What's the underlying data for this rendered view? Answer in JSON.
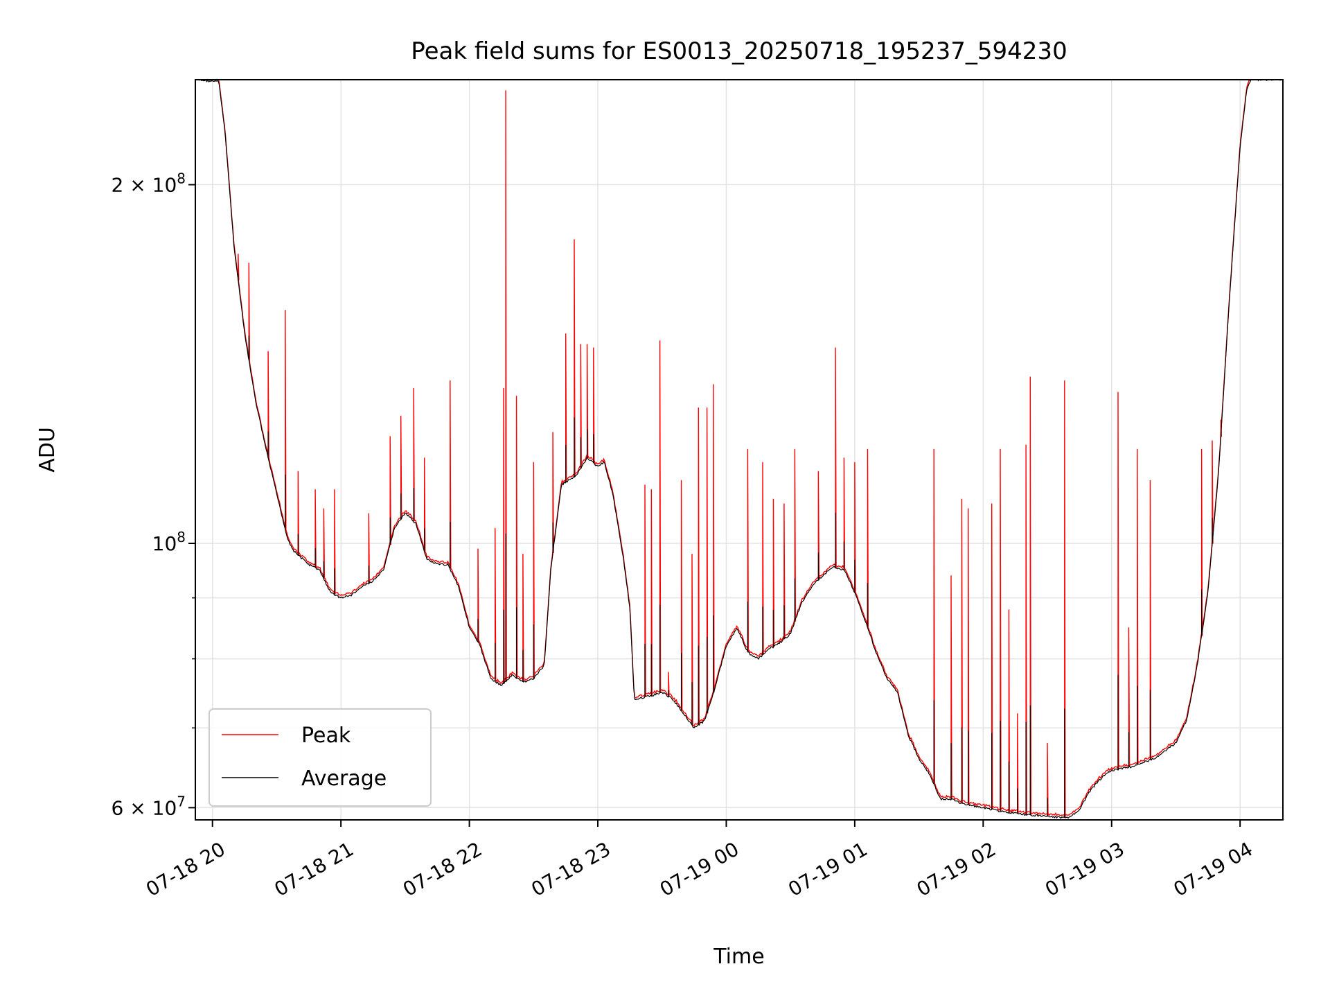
{
  "chart_data": {
    "type": "line",
    "title": "Peak field sums for ES0013_20250718_195237_594230",
    "xlabel": "Time",
    "ylabel": "ADU",
    "y_scale": "log",
    "ylim": [
      58600000,
      245000000
    ],
    "xlim": [
      "2025-07-18T19:52:00",
      "2025-07-19T04:20:00"
    ],
    "x_ticks": [
      {
        "t": "2025-07-18T20:00",
        "label": "07-18 20"
      },
      {
        "t": "2025-07-18T21:00",
        "label": "07-18 21"
      },
      {
        "t": "2025-07-18T22:00",
        "label": "07-18 22"
      },
      {
        "t": "2025-07-18T23:00",
        "label": "07-18 23"
      },
      {
        "t": "2025-07-19T00:00",
        "label": "07-19 00"
      },
      {
        "t": "2025-07-19T01:00",
        "label": "07-19 01"
      },
      {
        "t": "2025-07-19T02:00",
        "label": "07-19 02"
      },
      {
        "t": "2025-07-19T03:00",
        "label": "07-19 03"
      },
      {
        "t": "2025-07-19T04:00",
        "label": "07-19 04"
      }
    ],
    "y_ticks_major": [
      {
        "value": 60000000,
        "label": "6 × 10",
        "exp": "7"
      },
      {
        "value": 100000000,
        "label": "10",
        "exp": "8"
      },
      {
        "value": 200000000,
        "label": "2 × 10",
        "exp": "8"
      }
    ],
    "y_ticks_minor": [
      70000000,
      80000000,
      90000000
    ],
    "grid": true,
    "legend_position": "lower-left",
    "colors": {
      "peak": "#ff0000",
      "average": "#000000"
    },
    "average_series": {
      "name": "Average",
      "points": [
        [
          "2025-07-18T19:52",
          245000000
        ],
        [
          "2025-07-18T20:03",
          244000000
        ],
        [
          "2025-07-18T20:06",
          220000000
        ],
        [
          "2025-07-18T20:10",
          178000000
        ],
        [
          "2025-07-18T20:15",
          150000000
        ],
        [
          "2025-07-18T20:20",
          132000000
        ],
        [
          "2025-07-18T20:25",
          120000000
        ],
        [
          "2025-07-18T20:30",
          110000000
        ],
        [
          "2025-07-18T20:35",
          101000000
        ],
        [
          "2025-07-18T20:38",
          98500000
        ],
        [
          "2025-07-18T20:45",
          96000000
        ],
        [
          "2025-07-18T20:50",
          95000000
        ],
        [
          "2025-07-18T20:55",
          91000000
        ],
        [
          "2025-07-18T21:00",
          90000000
        ],
        [
          "2025-07-18T21:05",
          90500000
        ],
        [
          "2025-07-18T21:10",
          92000000
        ],
        [
          "2025-07-18T21:15",
          93000000
        ],
        [
          "2025-07-18T21:20",
          95000000
        ],
        [
          "2025-07-18T21:25",
          103000000
        ],
        [
          "2025-07-18T21:30",
          106000000
        ],
        [
          "2025-07-18T21:35",
          104000000
        ],
        [
          "2025-07-18T21:40",
          97000000
        ],
        [
          "2025-07-18T21:45",
          96000000
        ],
        [
          "2025-07-18T21:50",
          96000000
        ],
        [
          "2025-07-18T21:55",
          92000000
        ],
        [
          "2025-07-18T22:00",
          85000000
        ],
        [
          "2025-07-18T22:05",
          82000000
        ],
        [
          "2025-07-18T22:10",
          77000000
        ],
        [
          "2025-07-18T22:15",
          76000000
        ],
        [
          "2025-07-18T22:20",
          77500000
        ],
        [
          "2025-07-18T22:25",
          76500000
        ],
        [
          "2025-07-18T22:30",
          77000000
        ],
        [
          "2025-07-18T22:35",
          79000000
        ],
        [
          "2025-07-18T22:38",
          95000000
        ],
        [
          "2025-07-18T22:43",
          112000000
        ],
        [
          "2025-07-18T22:50",
          114000000
        ],
        [
          "2025-07-18T22:55",
          118000000
        ],
        [
          "2025-07-18T23:00",
          116000000
        ],
        [
          "2025-07-18T23:03",
          117000000
        ],
        [
          "2025-07-18T23:07",
          110000000
        ],
        [
          "2025-07-18T23:12",
          97000000
        ],
        [
          "2025-07-18T23:15",
          88000000
        ],
        [
          "2025-07-18T23:17",
          74000000
        ],
        [
          "2025-07-18T23:25",
          74500000
        ],
        [
          "2025-07-18T23:30",
          75000000
        ],
        [
          "2025-07-18T23:35",
          74000000
        ],
        [
          "2025-07-18T23:40",
          72000000
        ],
        [
          "2025-07-18T23:45",
          70000000
        ],
        [
          "2025-07-18T23:50",
          71000000
        ],
        [
          "2025-07-18T23:55",
          76000000
        ],
        [
          "2025-07-19T00:00",
          82000000
        ],
        [
          "2025-07-19T00:05",
          85000000
        ],
        [
          "2025-07-19T00:10",
          81000000
        ],
        [
          "2025-07-19T00:15",
          80000000
        ],
        [
          "2025-07-19T00:20",
          81500000
        ],
        [
          "2025-07-19T00:25",
          82500000
        ],
        [
          "2025-07-19T00:30",
          84000000
        ],
        [
          "2025-07-19T00:35",
          89000000
        ],
        [
          "2025-07-19T00:40",
          92000000
        ],
        [
          "2025-07-19T00:45",
          94000000
        ],
        [
          "2025-07-19T00:50",
          95500000
        ],
        [
          "2025-07-19T00:55",
          95000000
        ],
        [
          "2025-07-19T01:00",
          91000000
        ],
        [
          "2025-07-19T01:05",
          86000000
        ],
        [
          "2025-07-19T01:10",
          81000000
        ],
        [
          "2025-07-19T01:15",
          77000000
        ],
        [
          "2025-07-19T01:20",
          75000000
        ],
        [
          "2025-07-19T01:25",
          69000000
        ],
        [
          "2025-07-19T01:30",
          66000000
        ],
        [
          "2025-07-19T01:35",
          64000000
        ],
        [
          "2025-07-19T01:40",
          61000000
        ],
        [
          "2025-07-19T01:45",
          61000000
        ],
        [
          "2025-07-19T01:50",
          60500000
        ],
        [
          "2025-07-19T02:00",
          60000000
        ],
        [
          "2025-07-19T02:10",
          59500000
        ],
        [
          "2025-07-19T02:20",
          59200000
        ],
        [
          "2025-07-19T02:30",
          59000000
        ],
        [
          "2025-07-19T02:40",
          58800000
        ],
        [
          "2025-07-19T02:45",
          59800000
        ],
        [
          "2025-07-19T02:50",
          62000000
        ],
        [
          "2025-07-19T02:55",
          63500000
        ],
        [
          "2025-07-19T03:00",
          64500000
        ],
        [
          "2025-07-19T03:10",
          65000000
        ],
        [
          "2025-07-19T03:20",
          66000000
        ],
        [
          "2025-07-19T03:30",
          68000000
        ],
        [
          "2025-07-19T03:35",
          71000000
        ],
        [
          "2025-07-19T03:40",
          79000000
        ],
        [
          "2025-07-19T03:45",
          91000000
        ],
        [
          "2025-07-19T03:50",
          115000000
        ],
        [
          "2025-07-19T03:55",
          160000000
        ],
        [
          "2025-07-19T04:00",
          215000000
        ],
        [
          "2025-07-19T04:03",
          240000000
        ],
        [
          "2025-07-19T04:05",
          245000000
        ],
        [
          "2025-07-19T04:20",
          245000000
        ]
      ]
    },
    "peak_series": {
      "name": "Peak",
      "spikes": [
        [
          "2025-07-18T20:12",
          175000000
        ],
        [
          "2025-07-18T20:17",
          172000000
        ],
        [
          "2025-07-18T20:26",
          145000000
        ],
        [
          "2025-07-18T20:34",
          157000000
        ],
        [
          "2025-07-18T20:40",
          115000000
        ],
        [
          "2025-07-18T20:48",
          111000000
        ],
        [
          "2025-07-18T20:52",
          107000000
        ],
        [
          "2025-07-18T20:57",
          111000000
        ],
        [
          "2025-07-18T21:13",
          106000000
        ],
        [
          "2025-07-18T21:23",
          123000000
        ],
        [
          "2025-07-18T21:28",
          128000000
        ],
        [
          "2025-07-18T21:34",
          135000000
        ],
        [
          "2025-07-18T21:39",
          118000000
        ],
        [
          "2025-07-18T21:51",
          137000000
        ],
        [
          "2025-07-18T22:04",
          99000000
        ],
        [
          "2025-07-18T22:12",
          103000000
        ],
        [
          "2025-07-18T22:16",
          135000000
        ],
        [
          "2025-07-18T22:17",
          240000000
        ],
        [
          "2025-07-18T22:22",
          133000000
        ],
        [
          "2025-07-18T22:25",
          98000000
        ],
        [
          "2025-07-18T22:30",
          117000000
        ],
        [
          "2025-07-18T22:39",
          124000000
        ],
        [
          "2025-07-18T22:45",
          150000000
        ],
        [
          "2025-07-18T22:49",
          180000000
        ],
        [
          "2025-07-18T22:52",
          147000000
        ],
        [
          "2025-07-18T22:55",
          147000000
        ],
        [
          "2025-07-18T22:58",
          146000000
        ],
        [
          "2025-07-18T23:22",
          112000000
        ],
        [
          "2025-07-18T23:25",
          111000000
        ],
        [
          "2025-07-18T23:29",
          148000000
        ],
        [
          "2025-07-18T23:33",
          78000000
        ],
        [
          "2025-07-18T23:39",
          113000000
        ],
        [
          "2025-07-18T23:44",
          98000000
        ],
        [
          "2025-07-18T23:47",
          130000000
        ],
        [
          "2025-07-18T23:51",
          130000000
        ],
        [
          "2025-07-18T23:54",
          136000000
        ],
        [
          "2025-07-19T00:10",
          120000000
        ],
        [
          "2025-07-19T00:17",
          117000000
        ],
        [
          "2025-07-19T00:22",
          109000000
        ],
        [
          "2025-07-19T00:27",
          108000000
        ],
        [
          "2025-07-19T00:32",
          120000000
        ],
        [
          "2025-07-19T00:43",
          115000000
        ],
        [
          "2025-07-19T00:51",
          146000000
        ],
        [
          "2025-07-19T00:55",
          118000000
        ],
        [
          "2025-07-19T01:00",
          117000000
        ],
        [
          "2025-07-19T01:06",
          120000000
        ],
        [
          "2025-07-19T01:18",
          76000000
        ],
        [
          "2025-07-19T01:37",
          120000000
        ],
        [
          "2025-07-19T01:45",
          94000000
        ],
        [
          "2025-07-19T01:50",
          109000000
        ],
        [
          "2025-07-19T01:53",
          107000000
        ],
        [
          "2025-07-19T02:04",
          108000000
        ],
        [
          "2025-07-19T02:08",
          120000000
        ],
        [
          "2025-07-19T02:12",
          88000000
        ],
        [
          "2025-07-19T02:16",
          72000000
        ],
        [
          "2025-07-19T02:20",
          121000000
        ],
        [
          "2025-07-19T02:22",
          138000000
        ],
        [
          "2025-07-19T02:30",
          68000000
        ],
        [
          "2025-07-19T02:38",
          137000000
        ],
        [
          "2025-07-19T03:03",
          134000000
        ],
        [
          "2025-07-19T03:08",
          85000000
        ],
        [
          "2025-07-19T03:12",
          120000000
        ],
        [
          "2025-07-19T03:18",
          113000000
        ],
        [
          "2025-07-19T03:42",
          120000000
        ],
        [
          "2025-07-19T03:47",
          122000000
        ],
        [
          "2025-07-19T03:51",
          127000000
        ]
      ]
    }
  }
}
